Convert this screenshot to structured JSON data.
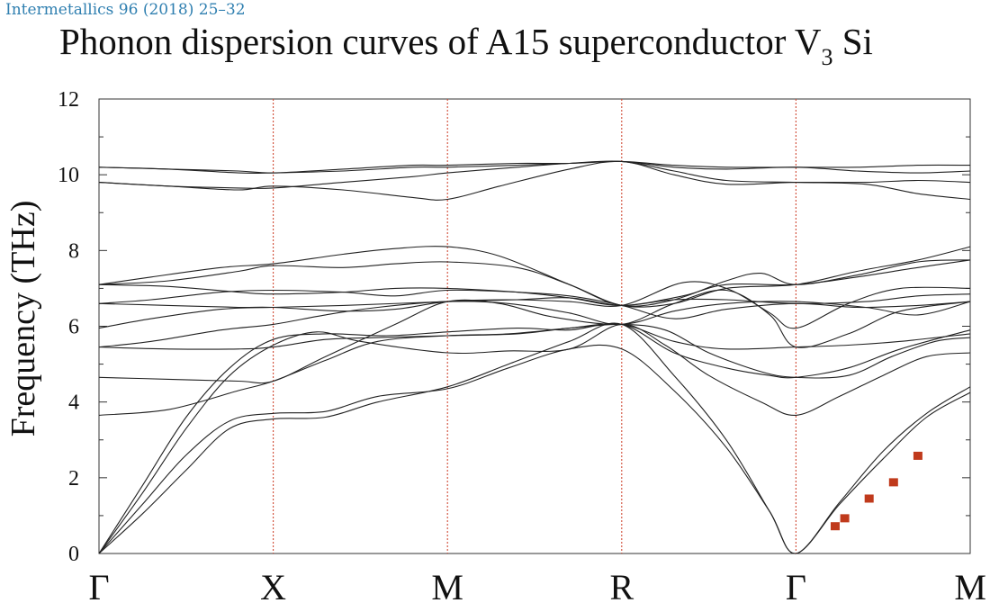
{
  "header": {
    "journal_ref": "Intermetallics 96 (2018) 25–32",
    "title_main": "Phonon dispersion curves of A15 superconductor V",
    "title_sub": "3",
    "title_end": "Si"
  },
  "chart_data": {
    "type": "line",
    "title": "Phonon dispersion curves of A15 superconductor V3Si",
    "xlabel": "",
    "ylabel": "Frequency (THz)",
    "ylim": [
      0,
      12
    ],
    "yticks": [
      0,
      2,
      4,
      6,
      8,
      10,
      12
    ],
    "grid": false,
    "colors": {
      "bands": "#222222",
      "separators": "#d04a35",
      "markers": "#c03a1c"
    },
    "x_unit": "path position (Γ=0, X=1, M=2, R=3, Γ=4, M=5)",
    "high_symmetry_points": [
      {
        "label": "Γ",
        "x": 0
      },
      {
        "label": "X",
        "x": 1
      },
      {
        "label": "M",
        "x": 2
      },
      {
        "label": "R",
        "x": 3
      },
      {
        "label": "Γ",
        "x": 4
      },
      {
        "label": "M",
        "x": 5
      }
    ],
    "bands": [
      {
        "points": [
          [
            0,
            0
          ],
          [
            0.25,
            1.05
          ],
          [
            0.5,
            2.2
          ],
          [
            0.75,
            3.3
          ],
          [
            1,
            3.55
          ],
          [
            1.3,
            3.6
          ],
          [
            1.6,
            4.0
          ],
          [
            2,
            4.4
          ],
          [
            2.35,
            5.0
          ],
          [
            2.7,
            5.6
          ],
          [
            3,
            6.05
          ],
          [
            3.3,
            4.7
          ],
          [
            3.6,
            3.0
          ],
          [
            3.85,
            1.1
          ],
          [
            4,
            0
          ],
          [
            4.25,
            1.3
          ],
          [
            4.5,
            2.5
          ],
          [
            4.75,
            3.6
          ],
          [
            5,
            4.25
          ]
        ]
      },
      {
        "points": [
          [
            0,
            0
          ],
          [
            0.25,
            1.3
          ],
          [
            0.5,
            2.6
          ],
          [
            0.75,
            3.5
          ],
          [
            1,
            3.7
          ],
          [
            1.3,
            3.75
          ],
          [
            1.6,
            4.15
          ],
          [
            2,
            4.35
          ],
          [
            2.35,
            4.9
          ],
          [
            2.7,
            5.4
          ],
          [
            3,
            5.4
          ],
          [
            3.3,
            4.3
          ],
          [
            3.6,
            2.8
          ],
          [
            3.85,
            1.1
          ],
          [
            4,
            0
          ],
          [
            4.25,
            1.35
          ],
          [
            4.5,
            2.7
          ],
          [
            4.75,
            3.7
          ],
          [
            5,
            4.4
          ]
        ]
      },
      {
        "points": [
          [
            0,
            0
          ],
          [
            0.25,
            1.6
          ],
          [
            0.5,
            3.3
          ],
          [
            0.75,
            4.7
          ],
          [
            1,
            5.5
          ],
          [
            1.25,
            5.85
          ],
          [
            1.5,
            5.6
          ],
          [
            2,
            5.3
          ],
          [
            2.35,
            5.35
          ],
          [
            2.7,
            5.4
          ],
          [
            3,
            6.05
          ],
          [
            3.25,
            5.5
          ],
          [
            3.5,
            4.7
          ],
          [
            3.8,
            4.0
          ],
          [
            4,
            3.65
          ],
          [
            4.25,
            4.15
          ],
          [
            4.5,
            4.7
          ],
          [
            4.75,
            5.2
          ],
          [
            5,
            5.3
          ]
        ]
      },
      {
        "points": [
          [
            0,
            0
          ],
          [
            0.25,
            1.8
          ],
          [
            0.5,
            3.6
          ],
          [
            0.75,
            4.9
          ],
          [
            1,
            5.65
          ],
          [
            1.3,
            5.8
          ],
          [
            1.65,
            5.75
          ],
          [
            2,
            5.85
          ],
          [
            2.4,
            5.95
          ],
          [
            2.7,
            5.9
          ],
          [
            3,
            6.05
          ],
          [
            3.3,
            5.3
          ],
          [
            3.6,
            4.9
          ],
          [
            3.85,
            4.7
          ],
          [
            4,
            4.65
          ],
          [
            4.3,
            4.9
          ],
          [
            4.6,
            5.4
          ],
          [
            5,
            5.9
          ]
        ]
      },
      {
        "points": [
          [
            0,
            3.65
          ],
          [
            0.4,
            3.8
          ],
          [
            0.8,
            4.3
          ],
          [
            1,
            4.55
          ],
          [
            1.3,
            5.1
          ],
          [
            1.6,
            5.6
          ],
          [
            2,
            5.75
          ],
          [
            2.35,
            5.8
          ],
          [
            2.7,
            5.95
          ],
          [
            3,
            6.05
          ],
          [
            3.25,
            5.9
          ],
          [
            3.5,
            5.3
          ],
          [
            3.8,
            4.8
          ],
          [
            4,
            4.65
          ],
          [
            4.3,
            4.7
          ],
          [
            4.55,
            5.2
          ],
          [
            4.8,
            5.6
          ],
          [
            5,
            5.7
          ]
        ]
      },
      {
        "points": [
          [
            0,
            4.65
          ],
          [
            0.4,
            4.6
          ],
          [
            0.8,
            4.55
          ],
          [
            1,
            4.55
          ],
          [
            1.3,
            5.2
          ],
          [
            1.7,
            6.05
          ],
          [
            2,
            6.65
          ],
          [
            2.3,
            6.6
          ],
          [
            2.6,
            6.25
          ],
          [
            3,
            6.05
          ],
          [
            3.3,
            6.4
          ],
          [
            3.6,
            6.6
          ],
          [
            4,
            6.65
          ],
          [
            4.4,
            6.5
          ],
          [
            4.7,
            6.3
          ],
          [
            5,
            6.65
          ]
        ]
      },
      {
        "points": [
          [
            0,
            5.45
          ],
          [
            0.4,
            5.4
          ],
          [
            0.8,
            5.4
          ],
          [
            1,
            5.45
          ],
          [
            1.3,
            5.65
          ],
          [
            1.6,
            5.7
          ],
          [
            2,
            5.75
          ],
          [
            2.4,
            5.8
          ],
          [
            2.7,
            5.95
          ],
          [
            3,
            6.05
          ],
          [
            3.3,
            5.6
          ],
          [
            3.6,
            5.4
          ],
          [
            4,
            5.45
          ],
          [
            4.3,
            5.5
          ],
          [
            4.6,
            5.6
          ],
          [
            5,
            5.8
          ]
        ]
      },
      {
        "points": [
          [
            0,
            5.45
          ],
          [
            0.3,
            5.6
          ],
          [
            0.7,
            5.9
          ],
          [
            1,
            6.05
          ],
          [
            1.3,
            6.3
          ],
          [
            1.6,
            6.5
          ],
          [
            2,
            6.65
          ],
          [
            2.35,
            6.6
          ],
          [
            2.7,
            6.35
          ],
          [
            3,
            6.05
          ],
          [
            3.3,
            6.6
          ],
          [
            3.6,
            6.95
          ],
          [
            3.85,
            6.3
          ],
          [
            4,
            5.45
          ],
          [
            4.3,
            5.8
          ],
          [
            4.6,
            6.4
          ],
          [
            5,
            6.65
          ]
        ]
      },
      {
        "points": [
          [
            0,
            5.95
          ],
          [
            0.3,
            6.2
          ],
          [
            0.7,
            6.45
          ],
          [
            1,
            6.5
          ],
          [
            1.4,
            6.55
          ],
          [
            2,
            6.65
          ],
          [
            2.4,
            6.7
          ],
          [
            2.7,
            6.75
          ],
          [
            3,
            6.55
          ],
          [
            3.3,
            6.7
          ],
          [
            3.6,
            6.7
          ],
          [
            4,
            6.6
          ],
          [
            4.4,
            6.65
          ],
          [
            4.7,
            6.8
          ],
          [
            5,
            6.85
          ]
        ]
      },
      {
        "points": [
          [
            0,
            6.6
          ],
          [
            0.4,
            6.55
          ],
          [
            0.8,
            6.5
          ],
          [
            1,
            6.5
          ],
          [
            1.4,
            6.4
          ],
          [
            1.7,
            6.45
          ],
          [
            2,
            6.65
          ],
          [
            2.35,
            6.7
          ],
          [
            2.7,
            6.65
          ],
          [
            3,
            6.55
          ],
          [
            3.35,
            7.15
          ],
          [
            3.6,
            7.0
          ],
          [
            3.85,
            6.35
          ],
          [
            4,
            5.95
          ],
          [
            4.3,
            6.6
          ],
          [
            4.6,
            7.0
          ],
          [
            5,
            7.0
          ]
        ]
      },
      {
        "points": [
          [
            0,
            6.6
          ],
          [
            0.3,
            6.7
          ],
          [
            0.7,
            6.9
          ],
          [
            1,
            6.95
          ],
          [
            1.4,
            6.9
          ],
          [
            1.7,
            6.8
          ],
          [
            2,
            6.95
          ],
          [
            2.4,
            6.9
          ],
          [
            2.7,
            6.8
          ],
          [
            3,
            6.55
          ],
          [
            3.3,
            6.2
          ],
          [
            3.6,
            6.45
          ],
          [
            4,
            6.6
          ],
          [
            4.35,
            6.5
          ],
          [
            4.7,
            6.55
          ],
          [
            5,
            6.65
          ]
        ]
      },
      {
        "points": [
          [
            0,
            7.1
          ],
          [
            0.4,
            7.05
          ],
          [
            0.8,
            6.9
          ],
          [
            1,
            6.85
          ],
          [
            1.4,
            6.9
          ],
          [
            1.7,
            7.0
          ],
          [
            2,
            7.0
          ],
          [
            2.4,
            6.9
          ],
          [
            2.7,
            6.75
          ],
          [
            3,
            6.55
          ],
          [
            3.35,
            6.8
          ],
          [
            3.6,
            7.1
          ],
          [
            4,
            7.1
          ],
          [
            4.35,
            7.3
          ],
          [
            4.7,
            7.55
          ],
          [
            5,
            7.75
          ]
        ]
      },
      {
        "points": [
          [
            0,
            7.1
          ],
          [
            0.4,
            7.2
          ],
          [
            0.8,
            7.45
          ],
          [
            1,
            7.6
          ],
          [
            1.4,
            7.55
          ],
          [
            1.7,
            7.65
          ],
          [
            2,
            7.7
          ],
          [
            2.4,
            7.55
          ],
          [
            2.7,
            7.1
          ],
          [
            3,
            6.55
          ],
          [
            3.3,
            6.6
          ],
          [
            3.6,
            7.0
          ],
          [
            4,
            7.1
          ],
          [
            4.35,
            7.45
          ],
          [
            4.7,
            7.75
          ],
          [
            5,
            8.1
          ]
        ]
      },
      {
        "points": [
          [
            0,
            7.1
          ],
          [
            0.3,
            7.3
          ],
          [
            0.7,
            7.55
          ],
          [
            1,
            7.65
          ],
          [
            1.4,
            7.9
          ],
          [
            1.7,
            8.05
          ],
          [
            2,
            8.1
          ],
          [
            2.3,
            7.85
          ],
          [
            2.7,
            7.1
          ],
          [
            3,
            6.55
          ],
          [
            3.3,
            6.7
          ],
          [
            3.6,
            7.2
          ],
          [
            3.8,
            7.4
          ],
          [
            4,
            7.1
          ],
          [
            4.35,
            7.35
          ],
          [
            4.7,
            7.7
          ],
          [
            5,
            7.75
          ]
        ]
      },
      {
        "points": [
          [
            0,
            9.8
          ],
          [
            0.4,
            9.7
          ],
          [
            0.8,
            9.65
          ],
          [
            1,
            9.65
          ],
          [
            1.4,
            9.8
          ],
          [
            1.8,
            9.95
          ],
          [
            2,
            10.05
          ],
          [
            2.4,
            10.2
          ],
          [
            2.7,
            10.3
          ],
          [
            3,
            10.35
          ],
          [
            3.3,
            10.1
          ],
          [
            3.6,
            9.85
          ],
          [
            4,
            9.8
          ],
          [
            4.4,
            9.75
          ],
          [
            4.7,
            9.5
          ],
          [
            5,
            9.35
          ]
        ]
      },
      {
        "points": [
          [
            0,
            9.8
          ],
          [
            0.4,
            9.7
          ],
          [
            0.8,
            9.6
          ],
          [
            1,
            9.7
          ],
          [
            1.4,
            9.6
          ],
          [
            1.8,
            9.4
          ],
          [
            2,
            9.35
          ],
          [
            2.3,
            9.7
          ],
          [
            2.7,
            10.15
          ],
          [
            3,
            10.35
          ],
          [
            3.3,
            10.0
          ],
          [
            3.6,
            9.75
          ],
          [
            4,
            9.8
          ],
          [
            4.4,
            9.8
          ],
          [
            4.7,
            9.85
          ],
          [
            5,
            9.8
          ]
        ]
      },
      {
        "points": [
          [
            0,
            10.2
          ],
          [
            0.4,
            10.15
          ],
          [
            0.8,
            10.05
          ],
          [
            1,
            10.05
          ],
          [
            1.4,
            10.1
          ],
          [
            1.8,
            10.2
          ],
          [
            2,
            10.2
          ],
          [
            2.4,
            10.25
          ],
          [
            2.7,
            10.3
          ],
          [
            3,
            10.35
          ],
          [
            3.3,
            10.2
          ],
          [
            3.6,
            10.15
          ],
          [
            4,
            10.2
          ],
          [
            4.35,
            10.1
          ],
          [
            4.7,
            10.05
          ],
          [
            5,
            10.1
          ]
        ]
      },
      {
        "points": [
          [
            0,
            10.2
          ],
          [
            0.4,
            10.15
          ],
          [
            0.8,
            10.1
          ],
          [
            1,
            10.05
          ],
          [
            1.4,
            10.15
          ],
          [
            1.8,
            10.25
          ],
          [
            2,
            10.25
          ],
          [
            2.4,
            10.3
          ],
          [
            2.7,
            10.3
          ],
          [
            3,
            10.35
          ],
          [
            3.3,
            10.25
          ],
          [
            3.6,
            10.2
          ],
          [
            4,
            10.2
          ],
          [
            4.35,
            10.2
          ],
          [
            4.7,
            10.25
          ],
          [
            5,
            10.25
          ]
        ]
      }
    ],
    "markers": [
      {
        "x": 4.225,
        "y": 0.72
      },
      {
        "x": 4.28,
        "y": 0.93
      },
      {
        "x": 4.42,
        "y": 1.45
      },
      {
        "x": 4.56,
        "y": 1.88
      },
      {
        "x": 4.7,
        "y": 2.58
      }
    ]
  }
}
